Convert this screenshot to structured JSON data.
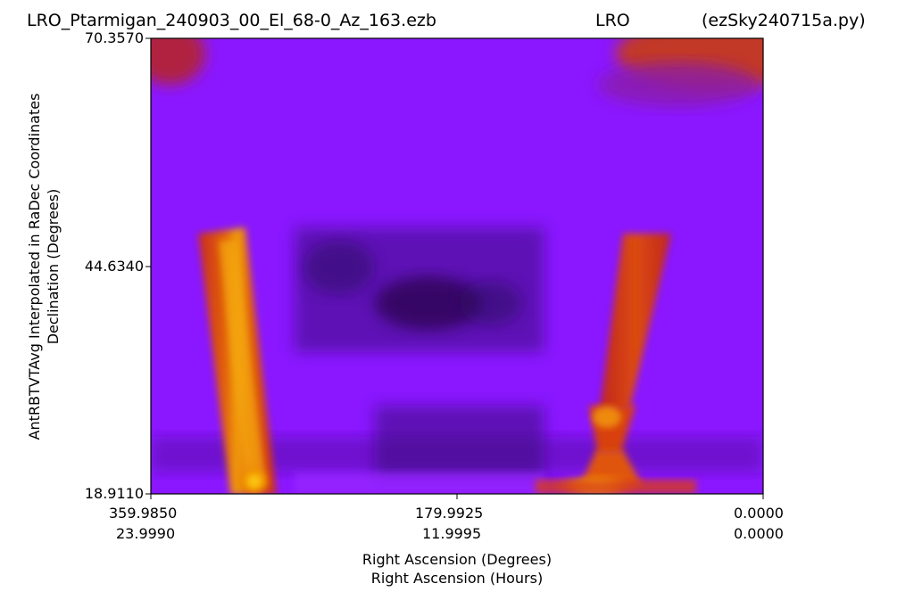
{
  "title": {
    "left": "LRO_Ptarmigan_240903_00_El_68-0_Az_163.ezb",
    "center": "LRO",
    "right": "(ezSky240715a.py)"
  },
  "chart_data": {
    "type": "heatmap",
    "colormap": "gnuplot-like (black → purple → red → orange → yellow)",
    "xlabel": [
      "Right Ascension (Degrees)",
      "Right Ascension (Hours)"
    ],
    "ylabel": [
      "AntRBTVTAvg Interpolated in RaDec Coordinates",
      "Declination (Degrees)"
    ],
    "x_ticks": [
      {
        "deg": "359.9850",
        "hours": "23.9990",
        "value": 359.985
      },
      {
        "deg": "179.9925",
        "hours": "11.9995",
        "value": 179.9925
      },
      {
        "deg": "0.0000",
        "hours": "0.0000",
        "value": 0.0
      }
    ],
    "y_ticks": [
      {
        "label": "70.3570",
        "value": 70.357
      },
      {
        "label": "44.6340",
        "value": 44.634
      },
      {
        "label": "18.9110",
        "value": 18.911
      }
    ],
    "xlim": [
      359.985,
      0.0
    ],
    "ylim": [
      18.911,
      70.357
    ],
    "features": [
      {
        "name": "hot band near RA 300-280 deg, Dec 19-50 deg",
        "intensity": "high"
      },
      {
        "name": "hot band near RA 100-60 deg, Dec 19-50 deg",
        "intensity": "high"
      },
      {
        "name": "warm region top-right, RA 40-0 deg, Dec 62-70 deg",
        "intensity": "medium"
      },
      {
        "name": "dark region center, RA 260-140 deg, Dec 35-50 deg",
        "intensity": "low"
      }
    ]
  }
}
